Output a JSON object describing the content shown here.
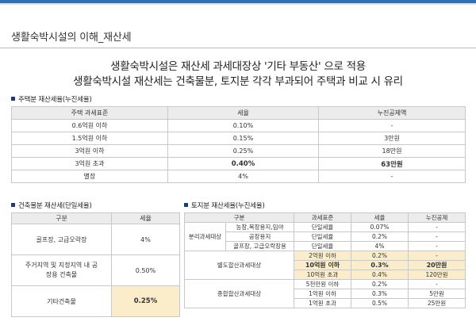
{
  "page": {
    "title": "생활숙박시설의 이해_재산세",
    "headline_1": "생활숙박시설은 재산세 과세대장상 '기타 부동산' 으로 적용",
    "headline_2": "생활숙박시설 재산세는 건축물분, 토지분 각각 부과되어 주택과 비교 시 유리"
  },
  "housing_table": {
    "label": "주택분 재산세율(누진세율)",
    "headers": [
      "주택 과세표준",
      "세율",
      "누진공제액"
    ],
    "rows": [
      [
        "0.6억원 이하",
        "0.10%",
        "-"
      ],
      [
        "1.5억원 이하",
        "0.15%",
        "3만원"
      ],
      [
        "3억원 이하",
        "0.25%",
        "18만원"
      ],
      [
        "3억원 초과",
        "0.40%",
        "63만원"
      ],
      [
        "별장",
        "4%",
        "-"
      ]
    ]
  },
  "building_table": {
    "label": "건축물분 재산세(단일세율)",
    "headers": [
      "구분",
      "세율"
    ],
    "rows": [
      [
        "골프장, 고급오락장",
        "4%"
      ],
      [
        "주거지역 및 지정지역 내 공장용 건축물",
        "0.50%"
      ],
      [
        "기타건축물",
        "0.25%"
      ]
    ]
  },
  "land_table": {
    "label": "토지분 재산세율(누진세율)",
    "headers": [
      "구분",
      "과세표준",
      "세율",
      "누진공제"
    ],
    "separate": {
      "group": "분리과세대상",
      "rows": [
        [
          "농장,목장용지,임야",
          "단일세율",
          "0.07%",
          "-"
        ],
        [
          "공장용지",
          "단일세율",
          "0.2%",
          "-"
        ],
        [
          "골프장, 고급오락장용",
          "단일세율",
          "4%",
          "-"
        ]
      ]
    },
    "special": {
      "group": "별도합산과세대상",
      "rows": [
        [
          "2억원 이하",
          "0.2%",
          "-"
        ],
        [
          "10억원 이하",
          "0.3%",
          "20만원"
        ],
        [
          "10억원 초과",
          "0.4%",
          "120만원"
        ]
      ]
    },
    "general": {
      "group": "종합합산과세대상",
      "rows": [
        [
          "5천만원 이하",
          "0.2%",
          "-"
        ],
        [
          "1억원 이하",
          "0.3%",
          "5만원"
        ],
        [
          "1억원 초과",
          "0.5%",
          "25만원"
        ]
      ]
    }
  },
  "colors": {
    "accent": "#2f6fba",
    "highlight": "#fbedc9",
    "header_fill": "#ececec",
    "label_square": "#1f3c6e"
  }
}
